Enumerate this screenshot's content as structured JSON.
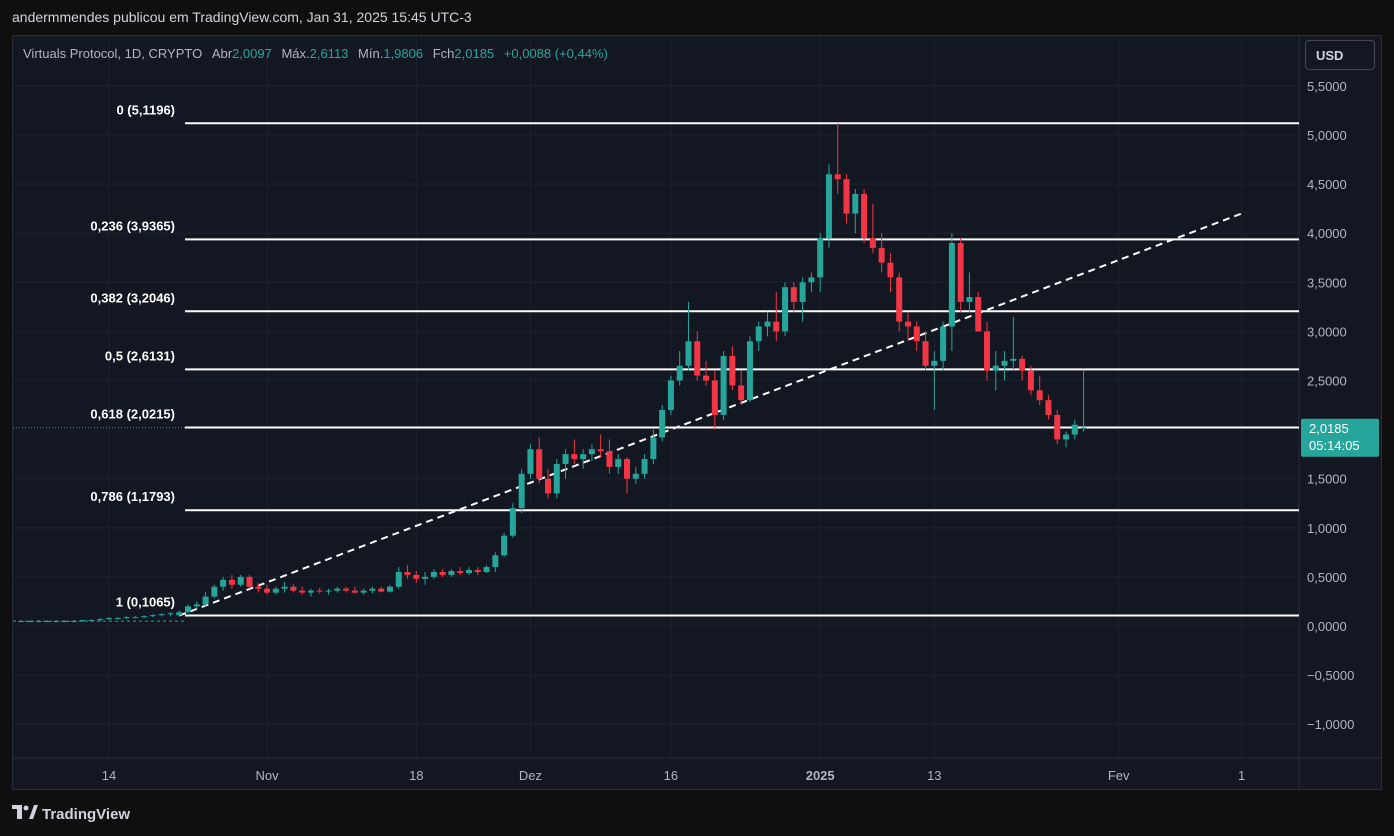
{
  "header": {
    "publisher_line": "andermmendes publicou em TradingView.com, Jan 31, 2025 15:45 UTC-3"
  },
  "legend": {
    "symbol": "Virtuals Protocol, 1D, CRYPTO",
    "open_label": "Abr",
    "open": "2,0097",
    "high_label": "Máx.",
    "high": "2,6113",
    "low_label": "Mín.",
    "low": "1,9806",
    "close_label": "Fch",
    "close": "2,0185",
    "change": "+0,0088 (+0,44%)"
  },
  "currency_button": "USD",
  "price_tag": {
    "price": "2,0185",
    "countdown": "05:14:05"
  },
  "footer": {
    "brand": "TradingView"
  },
  "colors": {
    "up": "#26a69a",
    "down": "#f23645",
    "background": "#131722",
    "fib_line": "#ffffff",
    "grid": "#1e222d"
  },
  "chart_data": {
    "type": "candlestick",
    "y_axis": {
      "ticks": [
        "5,5000",
        "5,0000",
        "4,5000",
        "4,0000",
        "3,5000",
        "3,0000",
        "2,5000",
        "1,5000",
        "1,0000",
        "0,5000",
        "0,0000",
        "−0,5000",
        "−1,0000"
      ],
      "tick_values": [
        5.5,
        5.0,
        4.5,
        4.0,
        3.5,
        3.0,
        2.5,
        1.5,
        1.0,
        0.5,
        0.0,
        -0.5,
        -1.0
      ],
      "range": [
        -1.2,
        5.7
      ]
    },
    "x_axis": {
      "ticks": [
        "14",
        "Nov",
        "18",
        "Dez",
        "16",
        "2025",
        "13",
        "Fev",
        "1"
      ],
      "tick_days": [
        0,
        18,
        35,
        48,
        64,
        81,
        94,
        115,
        129
      ]
    },
    "fib_levels": [
      {
        "label": "0 (5,1196)",
        "value": 5.1196
      },
      {
        "label": "0,236 (3,9365)",
        "value": 3.9365
      },
      {
        "label": "0,382 (3,2046)",
        "value": 3.2046
      },
      {
        "label": "0,5 (2,6131)",
        "value": 2.6131
      },
      {
        "label": "0,618 (2,0215)",
        "value": 2.0215
      },
      {
        "label": "0,786 (1,1793)",
        "value": 1.1793
      },
      {
        "label": "1 (0,1065)",
        "value": 0.1065
      }
    ],
    "trendline": {
      "start": [
        8,
        0.1065
      ],
      "end": [
        129,
        4.2
      ]
    },
    "candles": [
      [
        -10,
        0.05,
        0.06,
        0.04,
        0.05
      ],
      [
        -9,
        0.05,
        0.06,
        0.04,
        0.05
      ],
      [
        -8,
        0.05,
        0.06,
        0.04,
        0.05
      ],
      [
        -7,
        0.05,
        0.06,
        0.04,
        0.05
      ],
      [
        -6,
        0.05,
        0.06,
        0.04,
        0.05
      ],
      [
        -5,
        0.05,
        0.06,
        0.04,
        0.05
      ],
      [
        -4,
        0.05,
        0.06,
        0.04,
        0.05
      ],
      [
        -3,
        0.05,
        0.06,
        0.04,
        0.06
      ],
      [
        -2,
        0.06,
        0.07,
        0.05,
        0.06
      ],
      [
        -1,
        0.06,
        0.08,
        0.05,
        0.07
      ],
      [
        0,
        0.07,
        0.09,
        0.06,
        0.08
      ],
      [
        1,
        0.08,
        0.09,
        0.07,
        0.08
      ],
      [
        2,
        0.08,
        0.1,
        0.07,
        0.09
      ],
      [
        3,
        0.09,
        0.1,
        0.08,
        0.09
      ],
      [
        4,
        0.09,
        0.11,
        0.08,
        0.1
      ],
      [
        5,
        0.1,
        0.12,
        0.09,
        0.11
      ],
      [
        6,
        0.11,
        0.13,
        0.1,
        0.12
      ],
      [
        7,
        0.12,
        0.14,
        0.1,
        0.13
      ],
      [
        8,
        0.11,
        0.16,
        0.1,
        0.14
      ],
      [
        9,
        0.14,
        0.22,
        0.13,
        0.2
      ],
      [
        10,
        0.2,
        0.25,
        0.17,
        0.22
      ],
      [
        11,
        0.22,
        0.35,
        0.2,
        0.3
      ],
      [
        12,
        0.3,
        0.42,
        0.28,
        0.4
      ],
      [
        13,
        0.4,
        0.5,
        0.36,
        0.47
      ],
      [
        14,
        0.47,
        0.52,
        0.38,
        0.42
      ],
      [
        15,
        0.42,
        0.52,
        0.4,
        0.5
      ],
      [
        16,
        0.5,
        0.52,
        0.38,
        0.4
      ],
      [
        17,
        0.4,
        0.44,
        0.34,
        0.38
      ],
      [
        18,
        0.38,
        0.42,
        0.32,
        0.34
      ],
      [
        19,
        0.34,
        0.4,
        0.32,
        0.38
      ],
      [
        20,
        0.38,
        0.45,
        0.34,
        0.4
      ],
      [
        21,
        0.4,
        0.43,
        0.34,
        0.36
      ],
      [
        22,
        0.36,
        0.4,
        0.32,
        0.34
      ],
      [
        23,
        0.34,
        0.38,
        0.3,
        0.36
      ],
      [
        24,
        0.36,
        0.39,
        0.33,
        0.35
      ],
      [
        25,
        0.35,
        0.38,
        0.32,
        0.36
      ],
      [
        26,
        0.36,
        0.4,
        0.34,
        0.38
      ],
      [
        27,
        0.38,
        0.4,
        0.34,
        0.36
      ],
      [
        28,
        0.36,
        0.4,
        0.33,
        0.34
      ],
      [
        29,
        0.34,
        0.38,
        0.32,
        0.36
      ],
      [
        30,
        0.36,
        0.4,
        0.33,
        0.38
      ],
      [
        31,
        0.38,
        0.4,
        0.34,
        0.35
      ],
      [
        32,
        0.35,
        0.42,
        0.34,
        0.4
      ],
      [
        33,
        0.4,
        0.6,
        0.38,
        0.55
      ],
      [
        34,
        0.55,
        0.62,
        0.48,
        0.52
      ],
      [
        35,
        0.52,
        0.56,
        0.44,
        0.48
      ],
      [
        36,
        0.48,
        0.55,
        0.42,
        0.5
      ],
      [
        37,
        0.5,
        0.58,
        0.48,
        0.55
      ],
      [
        38,
        0.55,
        0.58,
        0.5,
        0.52
      ],
      [
        39,
        0.52,
        0.58,
        0.5,
        0.56
      ],
      [
        40,
        0.56,
        0.6,
        0.52,
        0.54
      ],
      [
        41,
        0.54,
        0.6,
        0.52,
        0.57
      ],
      [
        42,
        0.57,
        0.6,
        0.52,
        0.55
      ],
      [
        43,
        0.55,
        0.62,
        0.54,
        0.6
      ],
      [
        44,
        0.6,
        0.75,
        0.55,
        0.72
      ],
      [
        45,
        0.72,
        0.95,
        0.7,
        0.92
      ],
      [
        46,
        0.92,
        1.25,
        0.9,
        1.2
      ],
      [
        47,
        1.2,
        1.6,
        1.15,
        1.55
      ],
      [
        48,
        1.55,
        1.85,
        1.5,
        1.8
      ],
      [
        49,
        1.8,
        1.92,
        1.45,
        1.5
      ],
      [
        50,
        1.5,
        1.6,
        1.3,
        1.35
      ],
      [
        51,
        1.35,
        1.7,
        1.3,
        1.65
      ],
      [
        52,
        1.65,
        1.8,
        1.5,
        1.75
      ],
      [
        53,
        1.75,
        1.9,
        1.65,
        1.7
      ],
      [
        54,
        1.7,
        1.8,
        1.6,
        1.75
      ],
      [
        55,
        1.75,
        1.85,
        1.68,
        1.8
      ],
      [
        56,
        1.8,
        1.95,
        1.72,
        1.78
      ],
      [
        57,
        1.78,
        1.9,
        1.55,
        1.62
      ],
      [
        58,
        1.62,
        1.75,
        1.55,
        1.7
      ],
      [
        59,
        1.7,
        1.72,
        1.35,
        1.5
      ],
      [
        60,
        1.5,
        1.62,
        1.45,
        1.55
      ],
      [
        61,
        1.55,
        1.75,
        1.5,
        1.7
      ],
      [
        62,
        1.7,
        2.0,
        1.65,
        1.92
      ],
      [
        63,
        1.92,
        2.25,
        1.88,
        2.2
      ],
      [
        64,
        2.2,
        2.55,
        2.15,
        2.5
      ],
      [
        65,
        2.5,
        2.8,
        2.45,
        2.65
      ],
      [
        66,
        2.65,
        3.3,
        2.6,
        2.9
      ],
      [
        67,
        2.9,
        3.0,
        2.5,
        2.55
      ],
      [
        68,
        2.55,
        2.7,
        2.45,
        2.5
      ],
      [
        69,
        2.5,
        2.6,
        2.0,
        2.15
      ],
      [
        70,
        2.15,
        2.8,
        2.1,
        2.75
      ],
      [
        71,
        2.75,
        2.85,
        2.4,
        2.45
      ],
      [
        72,
        2.45,
        2.6,
        2.25,
        2.3
      ],
      [
        73,
        2.3,
        2.95,
        2.28,
        2.9
      ],
      [
        74,
        2.9,
        3.1,
        2.8,
        3.05
      ],
      [
        75,
        3.05,
        3.2,
        2.95,
        3.1
      ],
      [
        76,
        3.1,
        3.4,
        2.9,
        3.0
      ],
      [
        77,
        3.0,
        3.5,
        2.95,
        3.45
      ],
      [
        78,
        3.45,
        3.5,
        3.2,
        3.3
      ],
      [
        79,
        3.3,
        3.55,
        3.1,
        3.5
      ],
      [
        80,
        3.5,
        3.6,
        3.4,
        3.55
      ],
      [
        81,
        3.55,
        4.0,
        3.4,
        3.95
      ],
      [
        82,
        3.95,
        4.7,
        3.85,
        4.6
      ],
      [
        83,
        4.6,
        5.12,
        4.4,
        4.55
      ],
      [
        84,
        4.55,
        4.6,
        4.1,
        4.2
      ],
      [
        85,
        4.2,
        4.45,
        4.0,
        4.4
      ],
      [
        86,
        4.4,
        4.45,
        3.9,
        3.95
      ],
      [
        87,
        3.95,
        4.3,
        3.8,
        3.85
      ],
      [
        88,
        3.85,
        4.0,
        3.6,
        3.7
      ],
      [
        89,
        3.7,
        3.8,
        3.4,
        3.55
      ],
      [
        90,
        3.55,
        3.6,
        3.0,
        3.1
      ],
      [
        91,
        3.1,
        3.2,
        2.9,
        3.05
      ],
      [
        92,
        3.05,
        3.1,
        2.8,
        2.9
      ],
      [
        93,
        2.9,
        3.0,
        2.6,
        2.65
      ],
      [
        94,
        2.65,
        2.8,
        2.2,
        2.7
      ],
      [
        95,
        2.7,
        3.1,
        2.6,
        3.05
      ],
      [
        96,
        3.05,
        4.0,
        2.8,
        3.9
      ],
      [
        97,
        3.9,
        3.95,
        3.2,
        3.3
      ],
      [
        98,
        3.3,
        3.6,
        3.2,
        3.35
      ],
      [
        99,
        3.35,
        3.4,
        3.0,
        3.0
      ],
      [
        100,
        3.0,
        3.1,
        2.5,
        2.6
      ],
      [
        101,
        2.6,
        2.8,
        2.4,
        2.65
      ],
      [
        102,
        2.65,
        2.8,
        2.5,
        2.7
      ],
      [
        103,
        2.7,
        3.15,
        2.6,
        2.72
      ],
      [
        104,
        2.72,
        2.75,
        2.5,
        2.6
      ],
      [
        105,
        2.6,
        2.65,
        2.35,
        2.4
      ],
      [
        106,
        2.4,
        2.55,
        2.25,
        2.3
      ],
      [
        107,
        2.3,
        2.35,
        2.1,
        2.15
      ],
      [
        108,
        2.15,
        2.2,
        1.85,
        1.9
      ],
      [
        109,
        1.9,
        1.98,
        1.82,
        1.95
      ],
      [
        110,
        1.95,
        2.1,
        1.9,
        2.05
      ],
      [
        111,
        2.01,
        2.61,
        1.98,
        2.02
      ]
    ]
  }
}
